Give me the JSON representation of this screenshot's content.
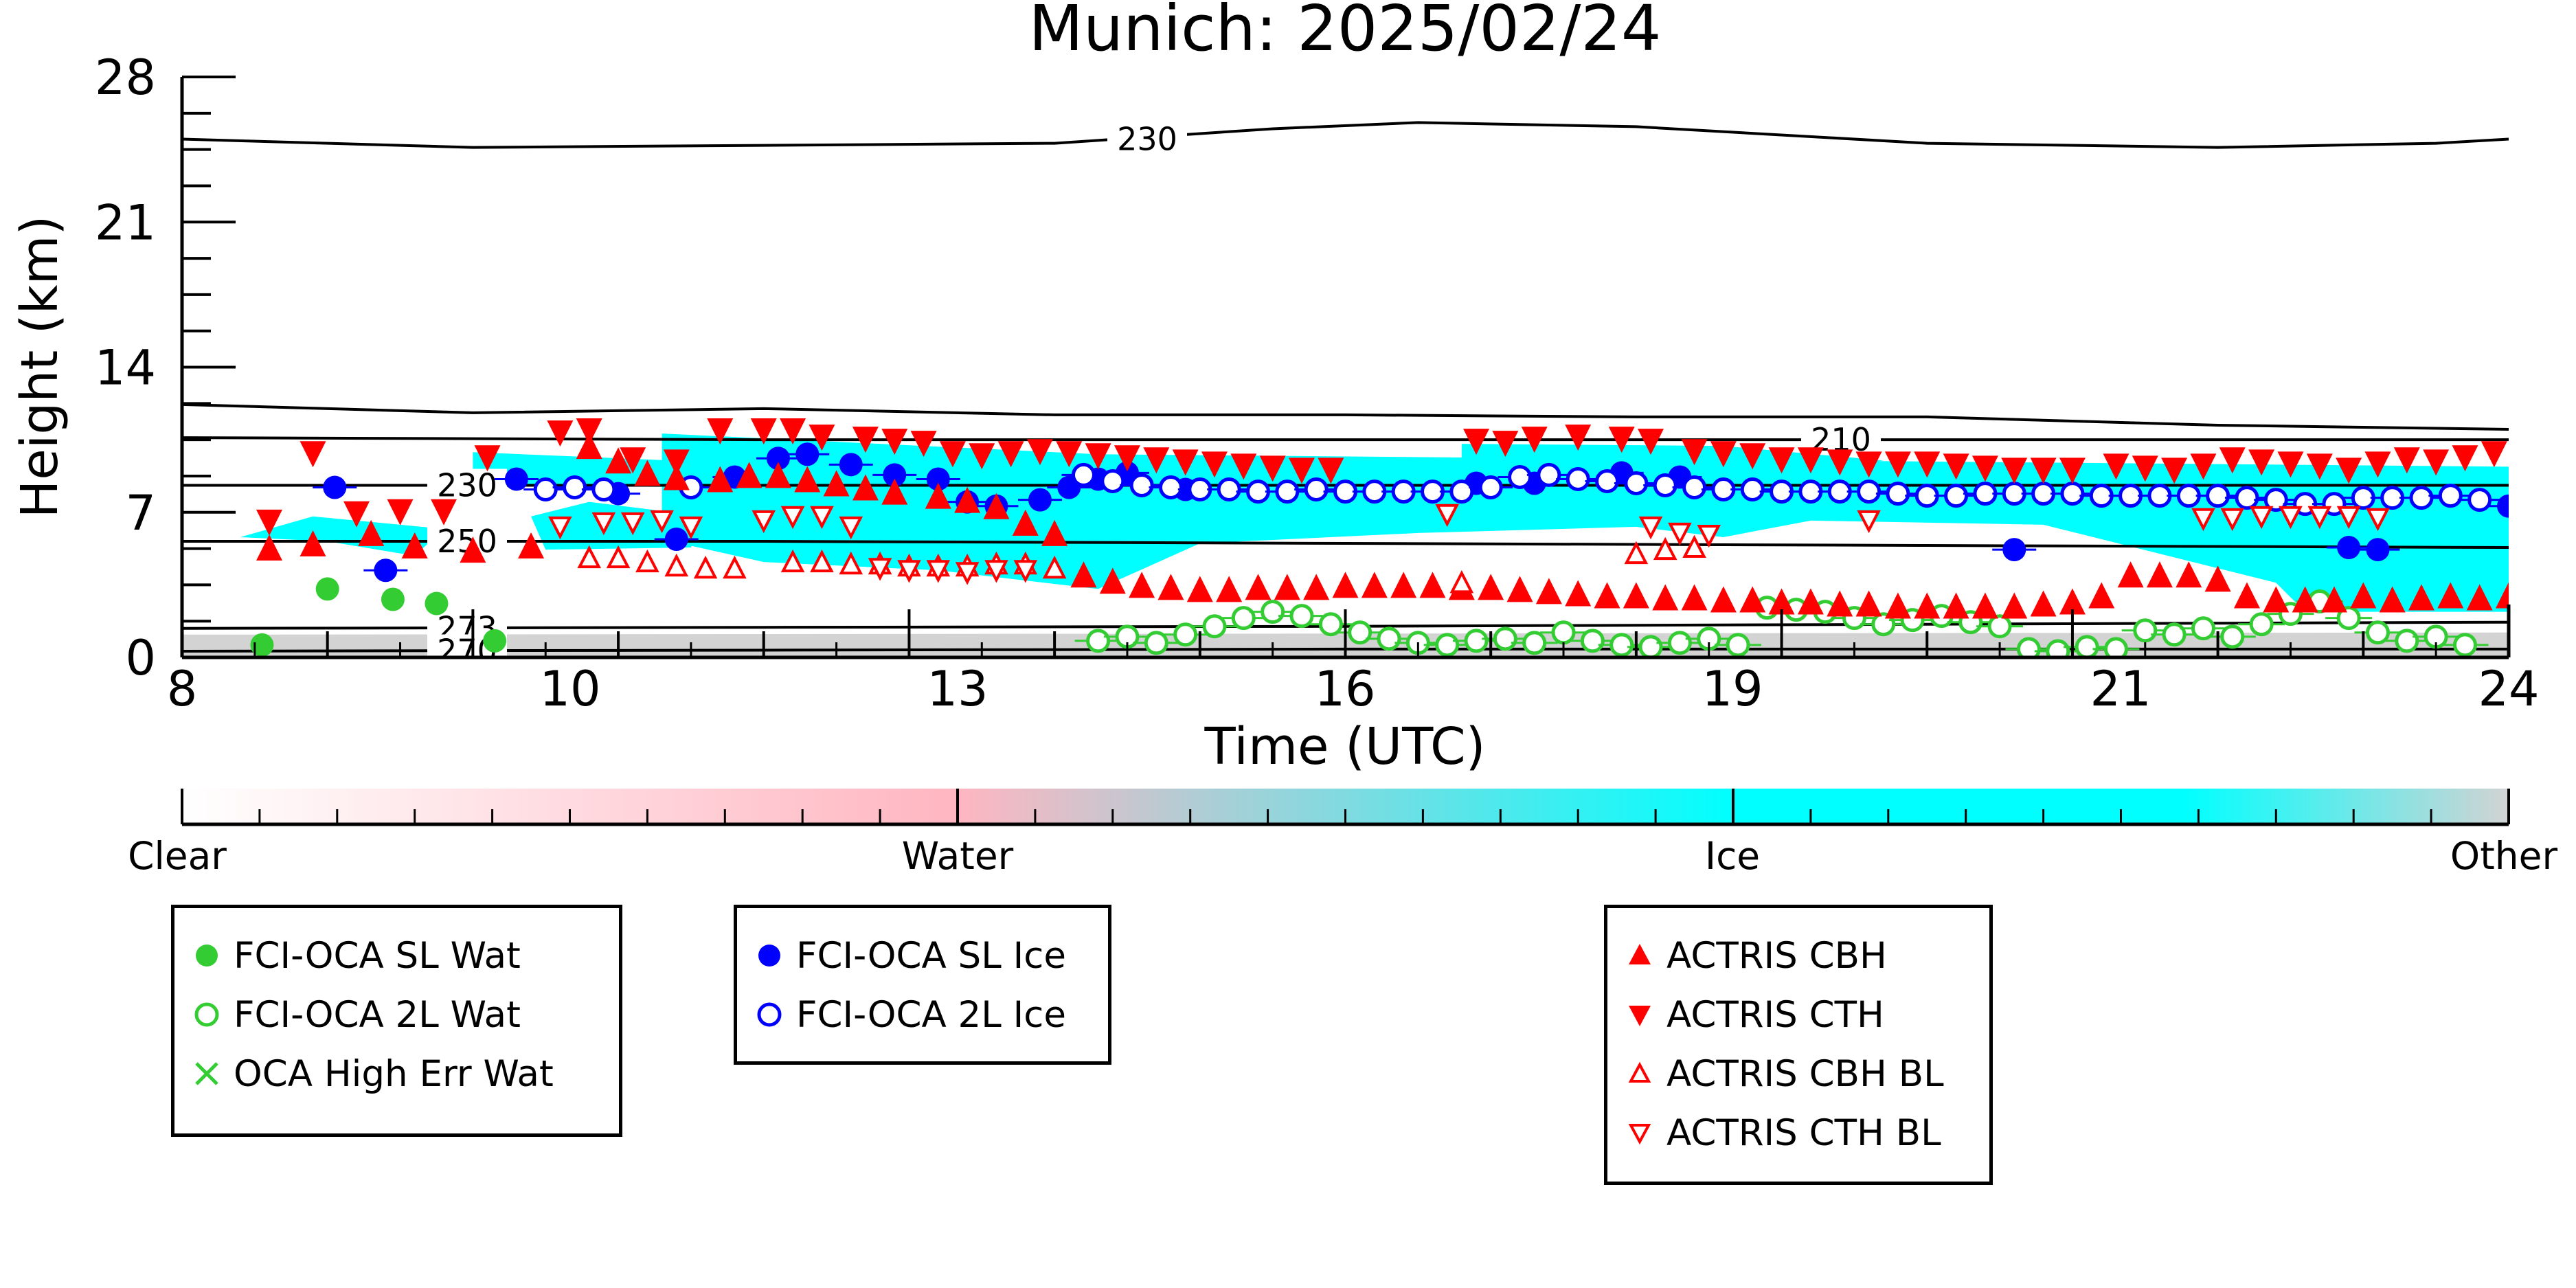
{
  "chart_data": {
    "type": "scatter",
    "title": "Munich: 2025/02/24",
    "xlabel": "Time (UTC)",
    "ylabel": "Height (km)",
    "xlim": [
      8,
      24
    ],
    "ylim": [
      0,
      28
    ],
    "x_ticks": [
      8,
      10,
      13,
      16,
      19,
      21,
      24
    ],
    "y_ticks": [
      0,
      7,
      14,
      21,
      28
    ],
    "colorbar": {
      "labels": [
        "Clear",
        "Water",
        "Ice",
        "Other"
      ],
      "colors": [
        "#ffffff",
        "#ffb6c1",
        "#00ffff",
        "#d3d3d3"
      ]
    },
    "temperature_contours": [
      {
        "label": "230",
        "points": [
          [
            8.0,
            25.0
          ],
          [
            10.0,
            24.6
          ],
          [
            12.0,
            24.7
          ],
          [
            14.0,
            24.8
          ],
          [
            15.5,
            25.5
          ],
          [
            16.5,
            25.8
          ],
          [
            18.0,
            25.6
          ],
          [
            20.0,
            24.8
          ],
          [
            22.0,
            24.6
          ],
          [
            23.5,
            24.8
          ],
          [
            24.0,
            25.0
          ]
        ]
      },
      {
        "label": "",
        "points": [
          [
            8.0,
            12.2
          ],
          [
            10.0,
            11.8
          ],
          [
            12.0,
            12.0
          ],
          [
            14.0,
            11.7
          ],
          [
            16.0,
            11.7
          ],
          [
            18.0,
            11.6
          ],
          [
            20.0,
            11.6
          ],
          [
            21.0,
            11.4
          ],
          [
            22.0,
            11.2
          ],
          [
            23.0,
            11.1
          ],
          [
            24.0,
            11.0
          ]
        ]
      },
      {
        "label": "210",
        "points": [
          [
            8.0,
            10.6
          ],
          [
            12.0,
            10.5
          ],
          [
            16.0,
            10.5
          ],
          [
            20.0,
            10.5
          ],
          [
            24.0,
            10.5
          ]
        ]
      },
      {
        "label": "230",
        "points": [
          [
            8.0,
            8.3
          ],
          [
            12.0,
            8.3
          ],
          [
            16.0,
            8.3
          ],
          [
            20.0,
            8.3
          ],
          [
            24.0,
            8.3
          ]
        ]
      },
      {
        "label": "250",
        "points": [
          [
            8.0,
            5.6
          ],
          [
            12.0,
            5.6
          ],
          [
            16.0,
            5.5
          ],
          [
            20.0,
            5.4
          ],
          [
            24.0,
            5.3
          ]
        ]
      },
      {
        "label": "273",
        "points": [
          [
            8.0,
            1.4
          ],
          [
            12.0,
            1.45
          ],
          [
            16.0,
            1.5
          ],
          [
            20.0,
            1.6
          ],
          [
            24.0,
            1.7
          ]
        ]
      },
      {
        "label": "270",
        "points": [
          [
            8.0,
            0.3
          ],
          [
            12.0,
            0.35
          ],
          [
            16.0,
            0.4
          ],
          [
            20.0,
            0.4
          ],
          [
            24.0,
            0.4
          ]
        ]
      }
    ],
    "classification_regions": [
      {
        "class": "Ice",
        "color": "#00ffff",
        "points": [
          [
            8.9,
            6.8
          ],
          [
            9.8,
            6.2
          ],
          [
            9.6,
            4.9
          ],
          [
            9.0,
            5.6
          ],
          [
            8.4,
            5.8
          ]
        ]
      },
      {
        "class": "Ice",
        "color": "#00ffff",
        "points": [
          [
            10.0,
            9.9
          ],
          [
            11.7,
            9.4
          ],
          [
            11.8,
            8.2
          ],
          [
            10.0,
            8.3
          ]
        ]
      },
      {
        "class": "Ice",
        "color": "#00ffff",
        "points": [
          [
            10.8,
            7.5
          ],
          [
            11.6,
            6.8
          ],
          [
            11.5,
            5.3
          ],
          [
            10.5,
            5.2
          ],
          [
            10.4,
            6.8
          ]
        ]
      },
      {
        "class": "Ice",
        "color": "#00ffff",
        "points": [
          [
            11.3,
            10.8
          ],
          [
            14.3,
            9.8
          ],
          [
            24.0,
            9.2
          ],
          [
            24.0,
            2.2
          ],
          [
            22.6,
            2.2
          ],
          [
            22.4,
            3.6
          ],
          [
            20.8,
            6.4
          ],
          [
            19.2,
            6.6
          ],
          [
            18.6,
            5.8
          ],
          [
            18.0,
            6.3
          ],
          [
            16.5,
            6.0
          ],
          [
            15.0,
            5.5
          ],
          [
            14.3,
            3.3
          ],
          [
            13.2,
            4.2
          ],
          [
            12.0,
            4.6
          ],
          [
            11.3,
            5.7
          ]
        ]
      },
      {
        "class": "Ice",
        "color": "#00ffff",
        "points": [
          [
            16.8,
            10.3
          ],
          [
            18.6,
            10.2
          ],
          [
            19.7,
            9.5
          ],
          [
            19.0,
            8.7
          ],
          [
            16.8,
            8.6
          ]
        ]
      },
      {
        "class": "Other",
        "color": "#d3d3d3",
        "points": [
          [
            8.0,
            1.1
          ],
          [
            24.0,
            1.2
          ],
          [
            24.0,
            0.0
          ],
          [
            8.0,
            0.0
          ]
        ]
      }
    ],
    "series": [
      {
        "name": "FCI-OCA SL Wat",
        "marker": "filled-circle",
        "color": "#33cc33",
        "x": [
          8.55,
          9.0,
          9.45,
          9.75,
          10.15
        ],
        "y": [
          0.6,
          3.3,
          2.8,
          2.6,
          0.8
        ]
      },
      {
        "name": "FCI-OCA 2L Wat",
        "marker": "open-circle",
        "color": "#33cc33",
        "x": [
          14.3,
          14.5,
          14.7,
          14.9,
          15.1,
          15.3,
          15.5,
          15.7,
          15.9,
          16.1,
          16.3,
          16.5,
          16.7,
          16.9,
          17.1,
          17.3,
          17.5,
          17.7,
          17.9,
          18.1,
          18.3,
          18.5,
          18.7,
          18.9,
          19.1,
          19.3,
          19.5,
          19.7,
          19.9,
          20.1,
          20.3,
          20.5,
          20.7,
          20.9,
          21.1,
          21.3,
          21.5,
          21.7,
          21.9,
          22.1,
          22.3,
          22.5,
          22.7,
          22.9,
          23.1,
          23.3,
          23.5,
          23.7
        ],
        "y": [
          0.8,
          1.0,
          0.7,
          1.1,
          1.5,
          1.9,
          2.2,
          2.0,
          1.6,
          1.2,
          0.9,
          0.7,
          0.6,
          0.8,
          0.9,
          0.7,
          1.2,
          0.8,
          0.6,
          0.5,
          0.7,
          0.9,
          0.6,
          2.4,
          2.3,
          2.2,
          1.9,
          1.6,
          1.8,
          2.0,
          1.7,
          1.5,
          0.4,
          0.3,
          0.5,
          0.4,
          1.3,
          1.1,
          1.4,
          1.0,
          1.6,
          2.1,
          2.7,
          1.9,
          1.2,
          0.8,
          1.0,
          0.6
        ]
      },
      {
        "name": "OCA High Err Wat",
        "marker": "x",
        "color": "#33cc33",
        "x": [],
        "y": []
      },
      {
        "name": "FCI-OCA SL Ice",
        "marker": "filled-circle",
        "color": "#0000ff",
        "x": [
          9.05,
          9.4,
          10.3,
          11.0,
          11.4,
          11.8,
          12.1,
          12.3,
          12.6,
          12.9,
          13.2,
          13.4,
          13.6,
          13.9,
          14.1,
          14.3,
          14.5,
          14.9,
          16.9,
          17.3,
          17.6,
          17.9,
          18.3,
          20.6,
          22.9,
          23.1,
          24.0
        ],
        "y": [
          8.2,
          4.2,
          8.6,
          7.9,
          5.7,
          8.7,
          9.6,
          9.8,
          9.3,
          8.8,
          8.6,
          7.5,
          7.3,
          7.6,
          8.2,
          8.6,
          8.9,
          8.1,
          8.4,
          8.4,
          8.6,
          8.9,
          8.7,
          5.2,
          5.3,
          5.2,
          7.3
        ]
      },
      {
        "name": "FCI-OCA 2L Ice",
        "marker": "open-circle",
        "color": "#0000ff",
        "x": [
          10.5,
          10.7,
          10.9,
          11.5,
          14.2,
          14.4,
          14.6,
          14.8,
          15.0,
          15.2,
          15.4,
          15.6,
          15.8,
          16.0,
          16.2,
          16.4,
          16.6,
          16.8,
          17.0,
          17.2,
          17.4,
          17.6,
          17.8,
          18.0,
          18.2,
          18.4,
          18.6,
          18.8,
          19.0,
          19.2,
          19.4,
          19.6,
          19.8,
          20.0,
          20.2,
          20.4,
          20.6,
          20.8,
          21.0,
          21.2,
          21.4,
          21.6,
          21.8,
          22.0,
          22.2,
          22.4,
          22.6,
          22.8,
          23.0,
          23.2,
          23.4,
          23.6,
          23.8
        ],
        "y": [
          8.1,
          8.2,
          8.1,
          8.2,
          8.8,
          8.5,
          8.3,
          8.2,
          8.1,
          8.1,
          8.0,
          8.0,
          8.1,
          8.0,
          8.0,
          8.0,
          8.0,
          8.0,
          8.2,
          8.7,
          8.8,
          8.6,
          8.5,
          8.4,
          8.3,
          8.2,
          8.1,
          8.1,
          8.0,
          8.0,
          8.0,
          8.0,
          7.9,
          7.8,
          7.8,
          7.9,
          7.9,
          7.9,
          7.9,
          7.8,
          7.8,
          7.8,
          7.8,
          7.8,
          7.7,
          7.6,
          7.4,
          7.4,
          7.7,
          7.7,
          7.7,
          7.8,
          7.6
        ]
      },
      {
        "name": "ACTRIS CBH",
        "marker": "triangle-up",
        "color": "#ff0000",
        "x": [
          8.6,
          8.9,
          9.3,
          9.6,
          10.0,
          10.4,
          10.8,
          11.0,
          11.2,
          11.4,
          11.7,
          11.9,
          12.1,
          12.3,
          12.5,
          12.7,
          12.9,
          13.2,
          13.4,
          13.6,
          13.8,
          14.0,
          14.2,
          14.4,
          14.6,
          14.8,
          15.0,
          15.2,
          15.4,
          15.6,
          15.8,
          16.0,
          16.2,
          16.4,
          16.6,
          16.8,
          17.0,
          17.2,
          17.4,
          17.6,
          17.8,
          18.0,
          18.2,
          18.4,
          18.6,
          18.8,
          19.0,
          19.2,
          19.4,
          19.6,
          19.8,
          20.0,
          20.2,
          20.4,
          20.6,
          20.8,
          21.0,
          21.2,
          21.4,
          21.6,
          21.8,
          22.0,
          22.2,
          22.4,
          22.6,
          22.8,
          23.0,
          23.2,
          23.4,
          23.6,
          23.8,
          24.0
        ],
        "y": [
          5.3,
          5.5,
          6.0,
          5.4,
          5.2,
          5.4,
          10.2,
          9.5,
          8.9,
          8.7,
          8.6,
          8.8,
          8.8,
          8.6,
          8.4,
          8.2,
          8.0,
          7.8,
          7.6,
          7.3,
          6.5,
          6.0,
          4.0,
          3.7,
          3.5,
          3.4,
          3.3,
          3.3,
          3.4,
          3.4,
          3.4,
          3.5,
          3.5,
          3.5,
          3.5,
          3.4,
          3.4,
          3.3,
          3.2,
          3.1,
          3.0,
          3.0,
          2.9,
          2.9,
          2.8,
          2.8,
          2.7,
          2.7,
          2.6,
          2.6,
          2.5,
          2.5,
          2.5,
          2.5,
          2.5,
          2.6,
          2.7,
          3.0,
          4.0,
          4.0,
          4.0,
          3.8,
          3.0,
          2.8,
          2.8,
          2.8,
          3.0,
          2.8,
          2.9,
          3.0,
          2.9,
          3.0
        ]
      },
      {
        "name": "ACTRIS CTH",
        "marker": "triangle-down",
        "color": "#ff0000",
        "x": [
          8.6,
          8.9,
          9.2,
          9.5,
          9.8,
          10.1,
          10.6,
          10.8,
          11.1,
          11.4,
          11.7,
          12.0,
          12.2,
          12.4,
          12.7,
          12.9,
          13.1,
          13.3,
          13.5,
          13.7,
          13.9,
          14.1,
          14.3,
          14.5,
          14.7,
          14.9,
          15.1,
          15.3,
          15.5,
          15.7,
          15.9,
          16.9,
          17.1,
          17.3,
          17.6,
          17.9,
          18.1,
          18.4,
          18.6,
          18.8,
          19.0,
          19.2,
          19.4,
          19.6,
          19.8,
          20.0,
          20.2,
          20.4,
          20.6,
          20.8,
          21.0,
          21.3,
          21.5,
          21.7,
          21.9,
          22.1,
          22.3,
          22.5,
          22.7,
          22.9,
          23.1,
          23.3,
          23.5,
          23.7,
          23.9
        ],
        "y": [
          6.5,
          9.8,
          6.9,
          7.0,
          7.0,
          9.6,
          10.8,
          10.9,
          9.5,
          9.4,
          10.9,
          10.9,
          10.9,
          10.6,
          10.5,
          10.4,
          10.3,
          9.8,
          9.7,
          9.8,
          9.9,
          9.8,
          9.7,
          9.6,
          9.5,
          9.4,
          9.3,
          9.2,
          9.1,
          9.0,
          9.0,
          10.4,
          10.3,
          10.5,
          10.6,
          10.5,
          10.4,
          9.9,
          9.8,
          9.7,
          9.5,
          9.5,
          9.4,
          9.3,
          9.3,
          9.3,
          9.2,
          9.1,
          9.0,
          9.0,
          9.0,
          9.2,
          9.1,
          9.0,
          9.2,
          9.5,
          9.4,
          9.3,
          9.2,
          9.0,
          9.3,
          9.5,
          9.4,
          9.6,
          9.8
        ]
      },
      {
        "name": "ACTRIS CBH BL",
        "marker": "open-triangle-up",
        "color": "#ff0000",
        "x": [
          10.8,
          11.0,
          11.2,
          11.4,
          11.6,
          11.8,
          12.2,
          12.4,
          12.6,
          12.8,
          13.0,
          13.2,
          13.4,
          13.6,
          13.8,
          14.0,
          16.8,
          18.0,
          18.2,
          18.4
        ],
        "y": [
          4.8,
          4.8,
          4.6,
          4.4,
          4.3,
          4.3,
          4.6,
          4.6,
          4.5,
          4.5,
          4.4,
          4.4,
          4.4,
          4.5,
          4.5,
          4.3,
          3.6,
          5.0,
          5.2,
          5.3
        ]
      },
      {
        "name": "ACTRIS CTH BL",
        "marker": "open-triangle-down",
        "color": "#ff0000",
        "x": [
          10.6,
          10.9,
          11.1,
          11.3,
          11.5,
          12.0,
          12.2,
          12.4,
          12.6,
          12.8,
          13.0,
          13.2,
          13.4,
          13.6,
          13.8,
          16.7,
          18.1,
          18.3,
          18.5,
          19.6,
          21.9,
          22.1,
          22.3,
          22.5,
          22.7,
          22.9,
          23.1
        ],
        "y": [
          6.3,
          6.5,
          6.5,
          6.6,
          6.3,
          6.6,
          6.8,
          6.8,
          6.3,
          4.3,
          4.2,
          4.2,
          4.1,
          4.2,
          4.2,
          6.9,
          6.3,
          6.0,
          5.9,
          6.6,
          6.7,
          6.7,
          6.8,
          6.8,
          6.8,
          6.8,
          6.7
        ]
      }
    ]
  }
}
